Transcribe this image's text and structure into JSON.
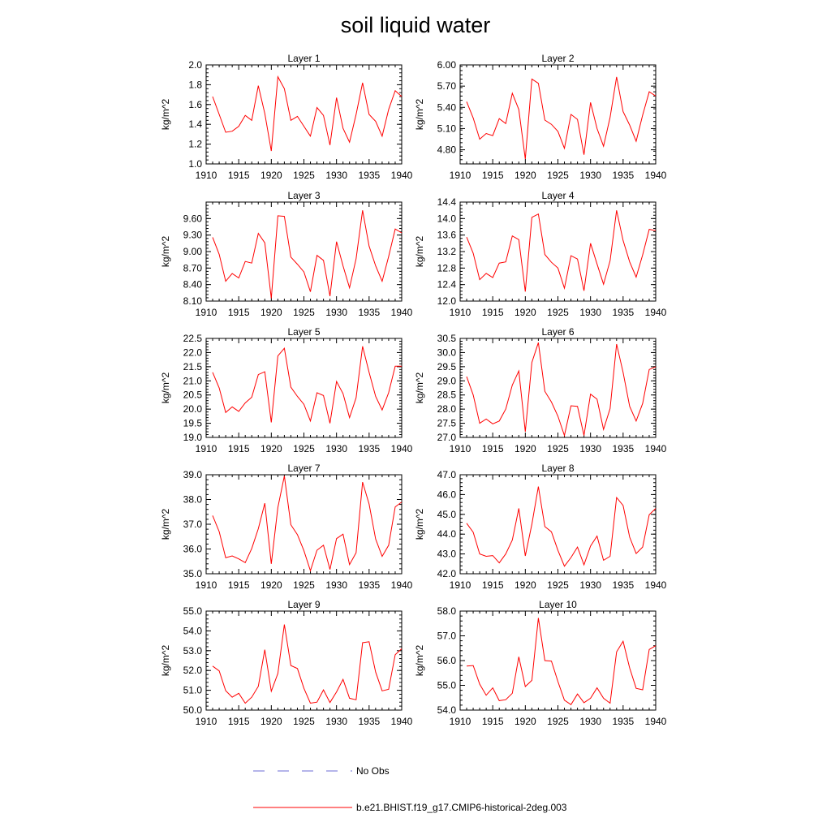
{
  "figure_title": "soil liquid water",
  "legend": [
    {
      "label": "No Obs",
      "color": "#6b6bd6",
      "dash": true
    },
    {
      "label": "b.e21.BHIST.f19_g17.CMIP6-historical-2deg.003",
      "color": "#ff0000",
      "dash": false
    }
  ],
  "chart_data": [
    {
      "type": "line",
      "title": "Layer 1",
      "ylabel": "kg/m^2",
      "xlim": [
        1910,
        1940
      ],
      "ylim": [
        1.0,
        2.0
      ],
      "xticks": [
        1910,
        1915,
        1920,
        1925,
        1930,
        1935,
        1940
      ],
      "yticks": [
        "1.0",
        "1.2",
        "1.4",
        "1.6",
        "1.8",
        "2.0"
      ],
      "x": [
        1911,
        1912,
        1913,
        1914,
        1915,
        1916,
        1917,
        1918,
        1919,
        1920,
        1921,
        1922,
        1923,
        1924,
        1925,
        1926,
        1927,
        1928,
        1929,
        1930,
        1931,
        1932,
        1933,
        1934,
        1935,
        1936,
        1937,
        1938,
        1939,
        1940
      ],
      "series": [
        {
          "values": [
            1.68,
            1.5,
            1.32,
            1.33,
            1.38,
            1.49,
            1.44,
            1.79,
            1.51,
            1.13,
            1.88,
            1.76,
            1.44,
            1.48,
            1.38,
            1.28,
            1.57,
            1.49,
            1.19,
            1.67,
            1.36,
            1.22,
            1.5,
            1.82,
            1.5,
            1.43,
            1.28,
            1.55,
            1.74,
            1.68
          ]
        }
      ]
    },
    {
      "type": "line",
      "title": "Layer 2",
      "ylabel": "kg/m^2",
      "xlim": [
        1910,
        1940
      ],
      "ylim": [
        4.6,
        6.0
      ],
      "xticks": [
        1910,
        1915,
        1920,
        1925,
        1930,
        1935,
        1940
      ],
      "yticks": [
        "4.80",
        "5.10",
        "5.40",
        "5.70",
        "6.00"
      ],
      "x": [
        1911,
        1912,
        1913,
        1914,
        1915,
        1916,
        1917,
        1918,
        1919,
        1920,
        1921,
        1922,
        1923,
        1924,
        1925,
        1926,
        1927,
        1928,
        1929,
        1930,
        1931,
        1932,
        1933,
        1934,
        1935,
        1936,
        1937,
        1938,
        1939,
        1940
      ],
      "series": [
        {
          "values": [
            5.48,
            5.25,
            4.95,
            5.03,
            5.0,
            5.24,
            5.17,
            5.6,
            5.37,
            4.67,
            5.8,
            5.74,
            5.22,
            5.16,
            5.06,
            4.82,
            5.3,
            5.23,
            4.73,
            5.47,
            5.1,
            4.85,
            5.26,
            5.83,
            5.34,
            5.15,
            4.92,
            5.29,
            5.62,
            5.56
          ]
        }
      ]
    },
    {
      "type": "line",
      "title": "Layer 3",
      "ylabel": "kg/m^2",
      "xlim": [
        1910,
        1940
      ],
      "ylim": [
        8.1,
        9.9
      ],
      "xticks": [
        1910,
        1915,
        1920,
        1925,
        1930,
        1935,
        1940
      ],
      "yticks": [
        "8.10",
        "8.40",
        "8.70",
        "9.00",
        "9.30",
        "9.60"
      ],
      "x": [
        1911,
        1912,
        1913,
        1914,
        1915,
        1916,
        1917,
        1918,
        1919,
        1920,
        1921,
        1922,
        1923,
        1924,
        1925,
        1926,
        1927,
        1928,
        1929,
        1930,
        1931,
        1932,
        1933,
        1934,
        1935,
        1936,
        1937,
        1938,
        1939,
        1940
      ],
      "series": [
        {
          "values": [
            9.26,
            8.95,
            8.46,
            8.6,
            8.52,
            8.82,
            8.79,
            9.33,
            9.16,
            8.15,
            9.65,
            9.64,
            8.9,
            8.77,
            8.63,
            8.27,
            8.93,
            8.84,
            8.19,
            9.18,
            8.74,
            8.34,
            8.87,
            9.75,
            9.1,
            8.74,
            8.46,
            8.91,
            9.41,
            9.34
          ]
        }
      ]
    },
    {
      "type": "line",
      "title": "Layer 4",
      "ylabel": "kg/m^2",
      "xlim": [
        1910,
        1940
      ],
      "ylim": [
        12.0,
        14.4
      ],
      "xticks": [
        1910,
        1915,
        1920,
        1925,
        1930,
        1935,
        1940
      ],
      "yticks": [
        "12.0",
        "12.4",
        "12.8",
        "13.2",
        "13.6",
        "14.0",
        "14.4"
      ],
      "x": [
        1911,
        1912,
        1913,
        1914,
        1915,
        1916,
        1917,
        1918,
        1919,
        1920,
        1921,
        1922,
        1923,
        1924,
        1925,
        1926,
        1927,
        1928,
        1929,
        1930,
        1931,
        1932,
        1933,
        1934,
        1935,
        1936,
        1937,
        1938,
        1939,
        1940
      ],
      "series": [
        {
          "values": [
            13.55,
            13.16,
            12.52,
            12.67,
            12.57,
            12.92,
            12.95,
            13.58,
            13.49,
            12.23,
            14.03,
            14.11,
            13.13,
            12.94,
            12.8,
            12.31,
            13.1,
            13.02,
            12.25,
            13.4,
            12.9,
            12.41,
            12.98,
            14.2,
            13.47,
            12.95,
            12.58,
            13.12,
            13.74,
            13.71
          ]
        }
      ]
    },
    {
      "type": "line",
      "title": "Layer 5",
      "ylabel": "kg/m^2",
      "xlim": [
        1910,
        1940
      ],
      "ylim": [
        19.0,
        22.5
      ],
      "xticks": [
        1910,
        1915,
        1920,
        1925,
        1930,
        1935,
        1940
      ],
      "yticks": [
        "19.0",
        "19.5",
        "20.0",
        "20.5",
        "21.0",
        "21.5",
        "22.0",
        "22.5"
      ],
      "x": [
        1911,
        1912,
        1913,
        1914,
        1915,
        1916,
        1917,
        1918,
        1919,
        1920,
        1921,
        1922,
        1923,
        1924,
        1925,
        1926,
        1927,
        1928,
        1929,
        1930,
        1931,
        1932,
        1933,
        1934,
        1935,
        1936,
        1937,
        1938,
        1939,
        1940
      ],
      "series": [
        {
          "values": [
            21.3,
            20.75,
            19.88,
            20.08,
            19.92,
            20.22,
            20.42,
            21.22,
            21.32,
            19.53,
            21.88,
            22.15,
            20.78,
            20.45,
            20.17,
            19.58,
            20.58,
            20.48,
            19.5,
            20.98,
            20.55,
            19.7,
            20.4,
            22.22,
            21.3,
            20.45,
            19.97,
            20.58,
            21.52,
            21.52
          ]
        }
      ]
    },
    {
      "type": "line",
      "title": "Layer 6",
      "ylabel": "kg/m^2",
      "xlim": [
        1910,
        1940
      ],
      "ylim": [
        27.0,
        30.5
      ],
      "xticks": [
        1910,
        1915,
        1920,
        1925,
        1930,
        1935,
        1940
      ],
      "yticks": [
        "27.0",
        "27.5",
        "28.0",
        "28.5",
        "29.0",
        "29.5",
        "30.0",
        "30.5"
      ],
      "x": [
        1911,
        1912,
        1913,
        1914,
        1915,
        1916,
        1917,
        1918,
        1919,
        1920,
        1921,
        1922,
        1923,
        1924,
        1925,
        1926,
        1927,
        1928,
        1929,
        1930,
        1931,
        1932,
        1933,
        1934,
        1935,
        1936,
        1937,
        1938,
        1939,
        1940
      ],
      "series": [
        {
          "values": [
            29.15,
            28.5,
            27.5,
            27.65,
            27.48,
            27.58,
            28.0,
            28.85,
            29.35,
            27.2,
            29.65,
            30.35,
            28.63,
            28.25,
            27.75,
            27.07,
            28.12,
            28.1,
            27.07,
            28.53,
            28.35,
            27.28,
            28.02,
            30.3,
            29.3,
            28.1,
            27.58,
            28.2,
            29.4,
            29.5
          ]
        }
      ]
    },
    {
      "type": "line",
      "title": "Layer 7",
      "ylabel": "kg/m^2",
      "xlim": [
        1910,
        1940
      ],
      "ylim": [
        35.0,
        39.0
      ],
      "xticks": [
        1910,
        1915,
        1920,
        1925,
        1930,
        1935,
        1940
      ],
      "yticks": [
        "35.0",
        "36.0",
        "37.0",
        "38.0",
        "39.0"
      ],
      "x": [
        1911,
        1912,
        1913,
        1914,
        1915,
        1916,
        1917,
        1918,
        1919,
        1920,
        1921,
        1922,
        1923,
        1924,
        1925,
        1926,
        1927,
        1928,
        1929,
        1930,
        1931,
        1932,
        1933,
        1934,
        1935,
        1936,
        1937,
        1938,
        1939,
        1940
      ],
      "series": [
        {
          "values": [
            37.35,
            36.7,
            35.65,
            35.72,
            35.6,
            35.45,
            36.02,
            36.82,
            37.85,
            35.4,
            37.68,
            38.95,
            36.98,
            36.58,
            35.93,
            35.12,
            35.95,
            36.15,
            35.17,
            36.42,
            36.6,
            35.37,
            35.85,
            38.7,
            37.82,
            36.4,
            35.7,
            36.15,
            37.7,
            37.9
          ]
        }
      ]
    },
    {
      "type": "line",
      "title": "Layer 8",
      "ylabel": "kg/m^2",
      "xlim": [
        1910,
        1940
      ],
      "ylim": [
        42.0,
        47.0
      ],
      "xticks": [
        1910,
        1915,
        1920,
        1925,
        1930,
        1935,
        1940
      ],
      "yticks": [
        "42.0",
        "43.0",
        "44.0",
        "45.0",
        "46.0",
        "47.0"
      ],
      "x": [
        1911,
        1912,
        1913,
        1914,
        1915,
        1916,
        1917,
        1918,
        1919,
        1920,
        1921,
        1922,
        1923,
        1924,
        1925,
        1926,
        1927,
        1928,
        1929,
        1930,
        1931,
        1932,
        1933,
        1934,
        1935,
        1936,
        1937,
        1938,
        1939,
        1940
      ],
      "series": [
        {
          "values": [
            44.55,
            44.1,
            43.0,
            42.88,
            42.92,
            42.55,
            43.0,
            43.7,
            45.3,
            42.9,
            44.5,
            46.4,
            44.38,
            44.12,
            43.18,
            42.38,
            42.82,
            43.35,
            42.45,
            43.4,
            43.9,
            42.68,
            42.88,
            45.85,
            45.45,
            43.85,
            43.02,
            43.35,
            44.98,
            45.3
          ]
        }
      ]
    },
    {
      "type": "line",
      "title": "Layer 9",
      "ylabel": "kg/m^2",
      "xlim": [
        1910,
        1940
      ],
      "ylim": [
        50.0,
        55.0
      ],
      "xticks": [
        1910,
        1915,
        1920,
        1925,
        1930,
        1935,
        1940
      ],
      "yticks": [
        "50.0",
        "51.0",
        "52.0",
        "53.0",
        "54.0",
        "55.0"
      ],
      "x": [
        1911,
        1912,
        1913,
        1914,
        1915,
        1916,
        1917,
        1918,
        1919,
        1920,
        1921,
        1922,
        1923,
        1924,
        1925,
        1926,
        1927,
        1928,
        1929,
        1930,
        1931,
        1932,
        1933,
        1934,
        1935,
        1936,
        1937,
        1938,
        1939,
        1940
      ],
      "series": [
        {
          "values": [
            52.22,
            51.98,
            50.98,
            50.65,
            50.85,
            50.35,
            50.65,
            51.2,
            53.05,
            50.95,
            51.85,
            54.32,
            52.25,
            52.1,
            51.1,
            50.35,
            50.4,
            51.02,
            50.38,
            50.92,
            51.55,
            50.6,
            50.52,
            53.4,
            53.45,
            51.92,
            50.97,
            51.05,
            52.8,
            53.1
          ]
        }
      ]
    },
    {
      "type": "line",
      "title": "Layer 10",
      "ylabel": "kg/m^2",
      "xlim": [
        1910,
        1940
      ],
      "ylim": [
        54.0,
        58.0
      ],
      "xticks": [
        1910,
        1915,
        1920,
        1925,
        1930,
        1935,
        1940
      ],
      "yticks": [
        "54.0",
        "55.0",
        "56.0",
        "57.0",
        "58.0"
      ],
      "x": [
        1911,
        1912,
        1913,
        1914,
        1915,
        1916,
        1917,
        1918,
        1919,
        1920,
        1921,
        1922,
        1923,
        1924,
        1925,
        1926,
        1927,
        1928,
        1929,
        1930,
        1931,
        1932,
        1933,
        1934,
        1935,
        1936,
        1937,
        1938,
        1939,
        1940
      ],
      "series": [
        {
          "values": [
            55.78,
            55.8,
            55.05,
            54.6,
            54.9,
            54.38,
            54.42,
            54.68,
            56.15,
            54.95,
            55.2,
            57.72,
            56.0,
            55.98,
            55.15,
            54.4,
            54.22,
            54.65,
            54.3,
            54.48,
            54.9,
            54.48,
            54.28,
            56.35,
            56.78,
            55.7,
            54.88,
            54.82,
            56.45,
            56.6
          ]
        }
      ]
    }
  ]
}
